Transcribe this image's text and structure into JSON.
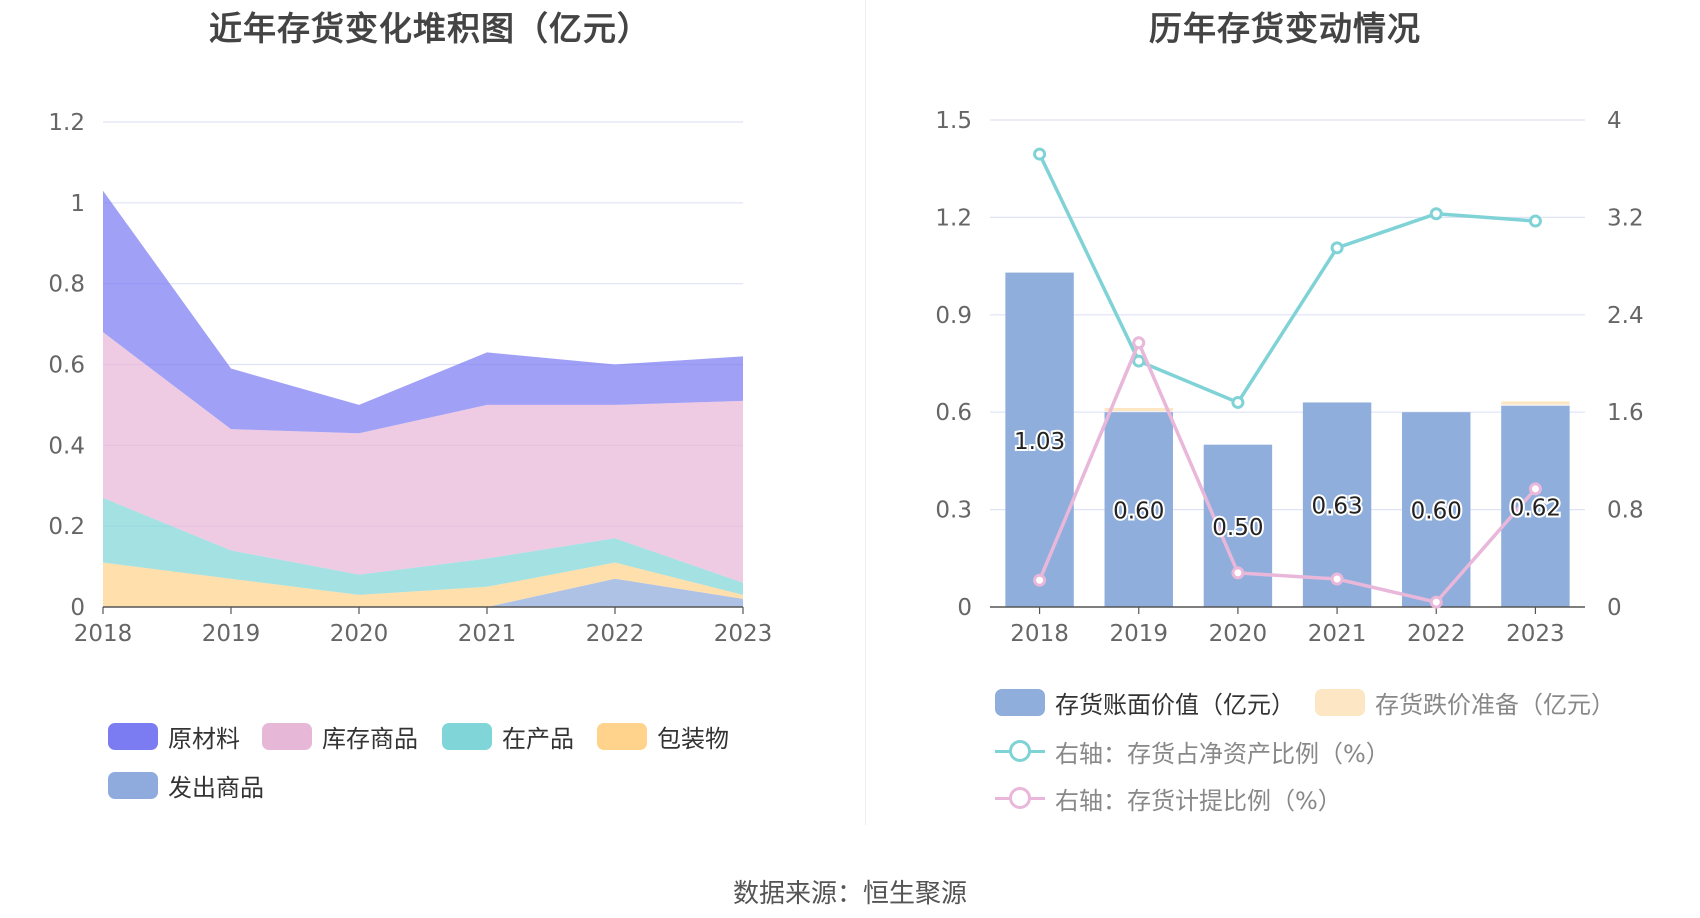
{
  "source": "数据来源：恒生聚源",
  "chart_data": [
    {
      "type": "area",
      "title": "近年存货变化堆积图（亿元）",
      "x": [
        "2018",
        "2019",
        "2020",
        "2021",
        "2022",
        "2023"
      ],
      "ylim": [
        0,
        1.2
      ],
      "yticks": [
        "0",
        "0.2",
        "0.4",
        "0.6",
        "0.8",
        "1",
        "1.2"
      ],
      "grid": true,
      "legend_position": "bottom",
      "series": [
        {
          "name": "发出商品",
          "color": "#8FAADC",
          "values": [
            0,
            0,
            0,
            0,
            0.07,
            0.02
          ]
        },
        {
          "name": "包装物",
          "color": "#FFD38C",
          "values": [
            0.11,
            0.07,
            0.03,
            0.05,
            0.04,
            0.01
          ]
        },
        {
          "name": "在产品",
          "color": "#80D5D8",
          "values": [
            0.16,
            0.07,
            0.05,
            0.07,
            0.06,
            0.03
          ]
        },
        {
          "name": "库存商品",
          "color": "#E7B7D8",
          "values": [
            0.41,
            0.3,
            0.35,
            0.38,
            0.33,
            0.45
          ]
        },
        {
          "name": "原材料",
          "color": "#7C7CF2",
          "values": [
            0.35,
            0.15,
            0.07,
            0.13,
            0.1,
            0.11
          ]
        }
      ],
      "legend_order": [
        "原材料",
        "库存商品",
        "在产品",
        "包装物",
        "发出商品"
      ]
    },
    {
      "type": "bar",
      "title": "历年存货变动情况",
      "categories": [
        "2018",
        "2019",
        "2020",
        "2021",
        "2022",
        "2023"
      ],
      "ylim": [
        0,
        1.5
      ],
      "yticks": [
        "0",
        "0.3",
        "0.6",
        "0.9",
        "1.2",
        "1.5"
      ],
      "y2lim": [
        0,
        4
      ],
      "y2ticks": [
        "0",
        "0.8",
        "1.6",
        "2.4",
        "3.2",
        "4"
      ],
      "grid": true,
      "legend_position": "bottom",
      "bar_series": [
        {
          "name": "存货账面价值（亿元）",
          "color": "#8FAEDB",
          "values": [
            1.03,
            0.6,
            0.5,
            0.63,
            0.6,
            0.62
          ],
          "labels": [
            "1.03",
            "0.60",
            "0.50",
            "0.63",
            "0.60",
            "0.62"
          ]
        },
        {
          "name": "存货跌价准备（亿元）",
          "color": "#FCE6C4",
          "values": [
            0,
            0.01,
            0,
            0,
            0,
            0.01
          ]
        }
      ],
      "line_series": [
        {
          "name": "右轴：存货占净资产比例（%）",
          "color": "#7FD3D6",
          "axis": "right",
          "values": [
            3.72,
            2.02,
            1.68,
            2.95,
            3.23,
            3.17
          ]
        },
        {
          "name": "右轴：存货计提比例（%）",
          "color": "#E8B7DA",
          "axis": "right",
          "values": [
            0.22,
            2.17,
            0.28,
            0.23,
            0.04,
            0.97
          ]
        }
      ]
    }
  ]
}
